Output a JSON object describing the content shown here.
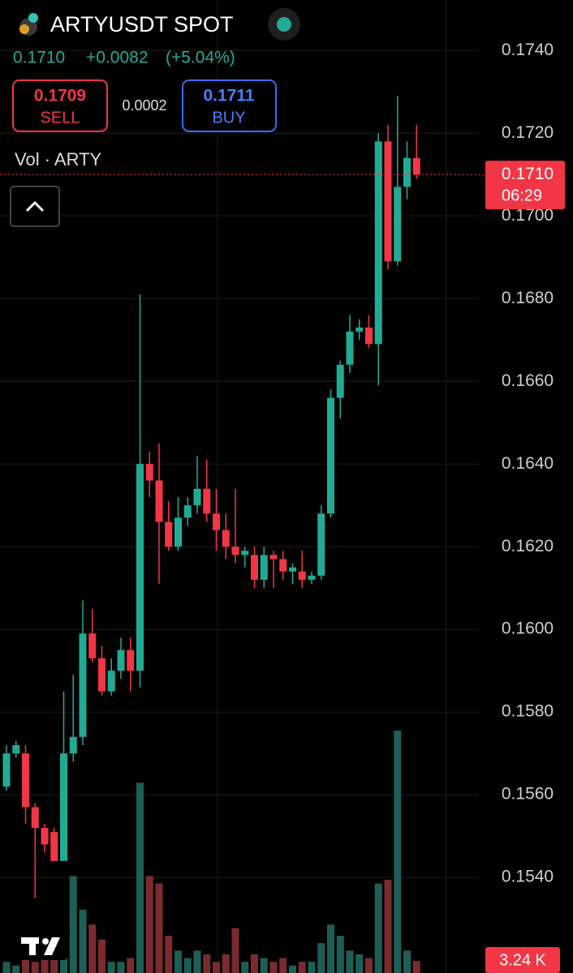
{
  "chart_data": {
    "type": "candlestick",
    "title": "ARTYUSDT SPOT",
    "last_price": {
      "value": 0.171,
      "label": "0.1710"
    },
    "change": "+0.0082",
    "change_percent": "(+5.04%)",
    "sell": {
      "price": "0.1709",
      "label": "SELL"
    },
    "spread": "0.0002",
    "buy": {
      "price": "0.1711",
      "label": "BUY"
    },
    "volume_label": "Vol · ARTY",
    "countdown": "06:29",
    "up_color": "#22ab94",
    "down_color": "#f23645",
    "volume_up_color": "#1d5e57",
    "volume_down_color": "#7a2b2e",
    "ylim": [
      0.15169,
      0.17522
    ],
    "yticks": [
      {
        "value": 0.174,
        "label": "0.1740"
      },
      {
        "value": 0.172,
        "label": "0.1720"
      },
      {
        "value": 0.17,
        "label": "0.1700"
      },
      {
        "value": 0.168,
        "label": "0.1680"
      },
      {
        "value": 0.166,
        "label": "0.1660"
      },
      {
        "value": 0.164,
        "label": "0.1640"
      },
      {
        "value": 0.162,
        "label": "0.1620"
      },
      {
        "value": 0.16,
        "label": "0.1600"
      },
      {
        "value": 0.158,
        "label": "0.1580"
      },
      {
        "value": 0.156,
        "label": "0.1560"
      },
      {
        "value": 0.154,
        "label": "0.1540"
      }
    ],
    "grid": true,
    "open": [
      0.1562,
      0.157,
      0.157,
      0.1557,
      0.1552,
      0.1551,
      0.1544,
      0.157,
      0.1574,
      0.1599,
      0.1593,
      0.1585,
      0.159,
      0.1595,
      0.159,
      0.164,
      0.1636,
      0.1626,
      0.162,
      0.1627,
      0.163,
      0.1634,
      0.1628,
      0.1624,
      0.162,
      0.1618,
      0.1618,
      0.1612,
      0.1618,
      0.1617,
      0.1614,
      0.1614,
      0.1612,
      0.1613,
      0.1628,
      0.1656,
      0.1664,
      0.1672,
      0.1673,
      0.1669,
      0.1718,
      0.1689,
      0.1707,
      0.1714
    ],
    "high": [
      0.1572,
      0.1573,
      0.1572,
      0.1558,
      0.1553,
      0.1552,
      0.1585,
      0.1589,
      0.1607,
      0.1605,
      0.1596,
      0.1593,
      0.1598,
      0.1598,
      0.1681,
      0.1643,
      0.1645,
      0.1631,
      0.1632,
      0.1632,
      0.1642,
      0.1641,
      0.1634,
      0.1628,
      0.1634,
      0.162,
      0.162,
      0.162,
      0.1619,
      0.1619,
      0.1616,
      0.1619,
      0.1614,
      0.163,
      0.1658,
      0.1665,
      0.1676,
      0.1675,
      0.1676,
      0.172,
      0.1722,
      0.1729,
      0.1718,
      0.1722
    ],
    "low": [
      0.1561,
      0.1569,
      0.1553,
      0.1535,
      0.1546,
      0.1544,
      0.1544,
      0.1568,
      0.1572,
      0.1592,
      0.1584,
      0.1584,
      0.1588,
      0.1585,
      0.1586,
      0.1632,
      0.1611,
      0.1619,
      0.1619,
      0.1625,
      0.1628,
      0.1626,
      0.1619,
      0.1617,
      0.1616,
      0.1615,
      0.161,
      0.161,
      0.161,
      0.1612,
      0.1611,
      0.161,
      0.1611,
      0.1612,
      0.1627,
      0.1651,
      0.1662,
      0.167,
      0.1668,
      0.1659,
      0.1687,
      0.1688,
      0.1704,
      0.1709
    ],
    "close": [
      0.157,
      0.1572,
      0.1557,
      0.1552,
      0.1548,
      0.1544,
      0.157,
      0.1574,
      0.1599,
      0.1593,
      0.1585,
      0.159,
      0.1595,
      0.159,
      0.164,
      0.1636,
      0.1626,
      0.162,
      0.1627,
      0.163,
      0.1634,
      0.1628,
      0.1624,
      0.162,
      0.1618,
      0.1619,
      0.1612,
      0.1618,
      0.1617,
      0.1614,
      0.1615,
      0.1612,
      0.1613,
      0.1628,
      0.1656,
      0.1664,
      0.1672,
      0.1673,
      0.1669,
      0.1718,
      0.1689,
      0.1707,
      0.1714,
      0.171
    ],
    "volume": [
      3,
      2,
      4,
      3,
      6,
      4,
      11,
      26,
      17,
      13,
      9,
      3,
      3,
      4,
      51,
      26,
      24,
      10,
      6,
      4,
      6,
      5,
      3,
      5,
      12,
      3,
      5,
      4,
      3,
      4,
      2,
      3,
      3,
      8,
      13,
      10,
      6,
      5,
      4,
      24,
      25,
      65,
      6,
      3.24
    ],
    "volume_value_labels": {
      "43": "3.24 K"
    },
    "vlim": [
      0,
      70
    ]
  }
}
